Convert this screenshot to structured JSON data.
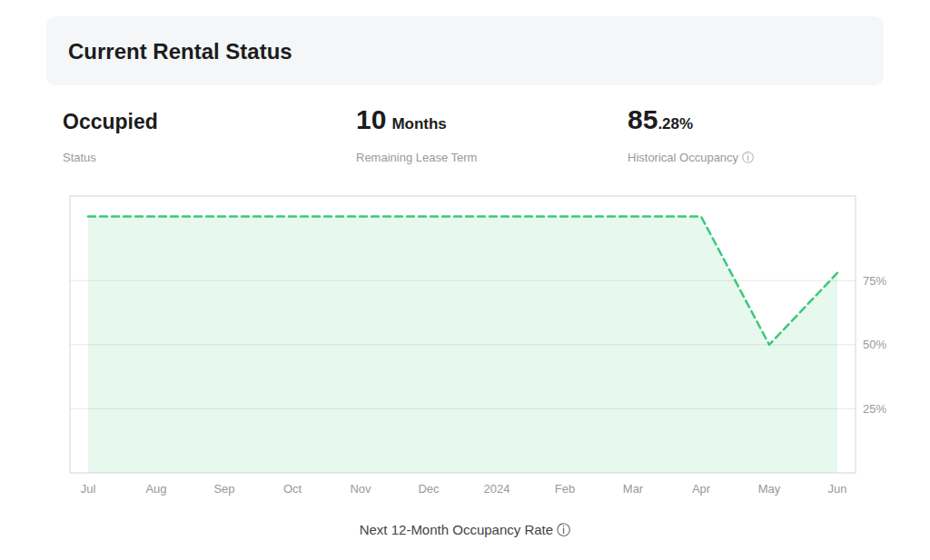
{
  "chart_data": {
    "type": "area",
    "title": "Current Rental Status",
    "annotations": [
      {
        "parts": [
          "Occupied"
        ],
        "caption": "Status"
      },
      {
        "parts": [
          "10",
          "Months"
        ],
        "caption": "Remaining Lease Term"
      },
      {
        "parts": [
          "85",
          ".28%"
        ],
        "caption": "Historical Occupancy ⓘ"
      }
    ],
    "xlabel": "Next 12-Month Occupancy Rate ⓘ",
    "categories": [
      "Jul",
      "Aug",
      "Sep",
      "Oct",
      "Nov",
      "Dec",
      "2024",
      "Feb",
      "Mar",
      "Apr",
      "May",
      "Jun"
    ],
    "values": [
      100,
      100,
      100,
      100,
      100,
      100,
      100,
      100,
      100,
      100,
      50,
      78
    ],
    "color": "#3CC87A",
    "line_style": "dashed",
    "ylim": [
      0,
      108
    ],
    "yticks": [
      {
        "value": 25,
        "label": "25%"
      },
      {
        "value": 50,
        "label": "50%"
      },
      {
        "value": 75,
        "label": "75%"
      }
    ],
    "grid": true
  }
}
